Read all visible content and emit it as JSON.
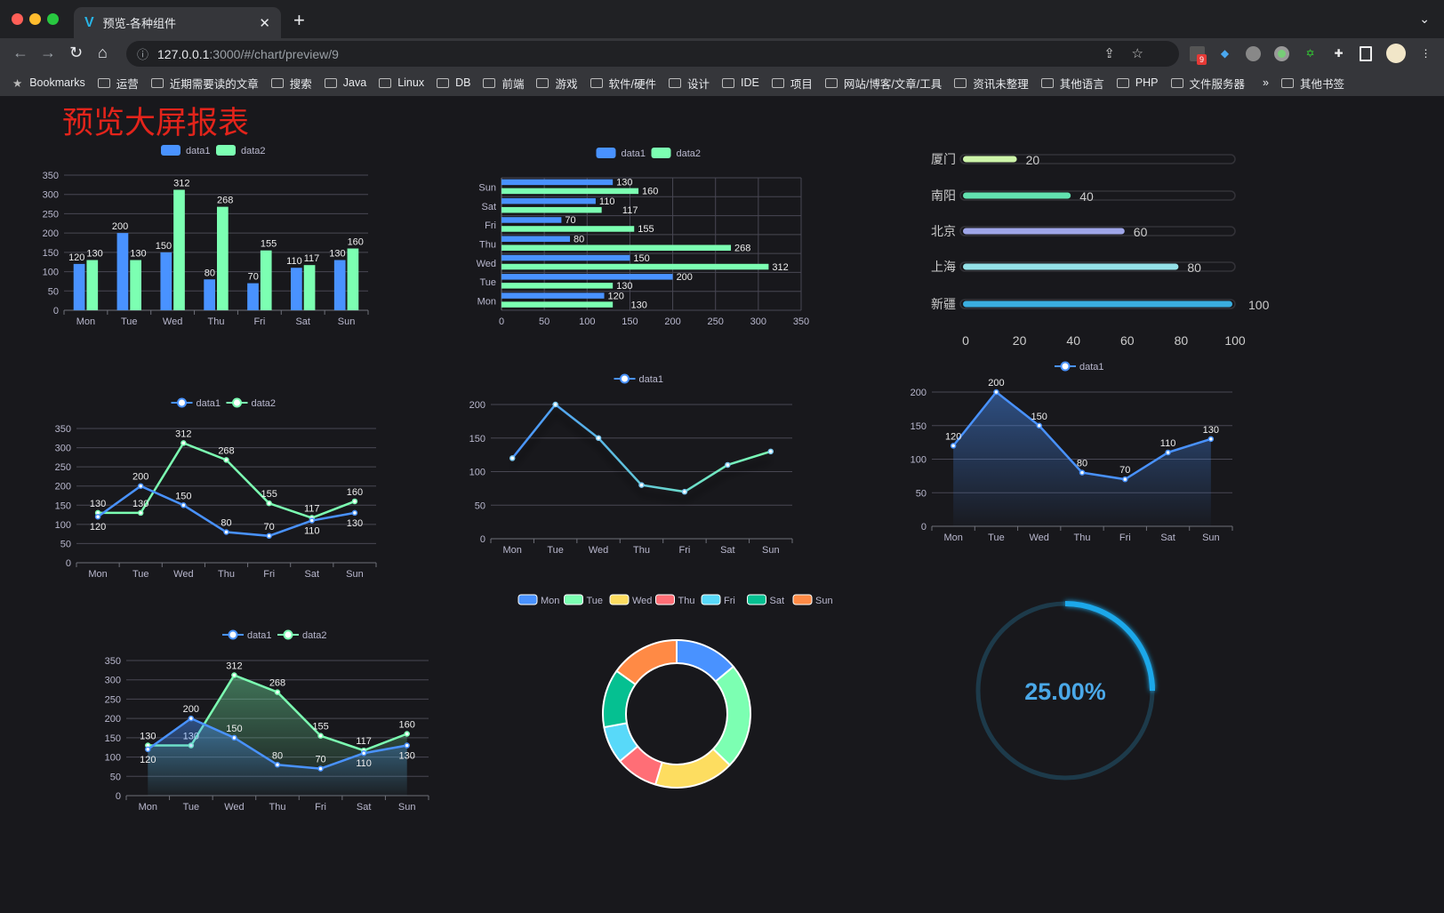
{
  "browser": {
    "tab_title": "预览-各种组件",
    "url_host": "127.0.0.1",
    "url_path": ":3000/#/chart/preview/9",
    "ext_badge": "9",
    "bookmarks": [
      "Bookmarks",
      "运营",
      "近期需要读的文章",
      "搜索",
      "Java",
      "Linux",
      "DB",
      "前端",
      "游戏",
      "软件/硬件",
      "设计",
      "IDE",
      "项目",
      "网站/博客/文章/工具",
      "资讯未整理",
      "其他语言",
      "PHP",
      "文件服务器"
    ],
    "overflow": "»",
    "other_bookmarks": "其他书签"
  },
  "page": {
    "title": "预览大屏报表"
  },
  "colors": {
    "data1": "#4992ff",
    "data2": "#7cffb2",
    "axis_text": "#b9b8ce",
    "grid": "#484753",
    "background": "#18181c"
  },
  "chart_data": [
    {
      "id": "bar",
      "type": "bar",
      "categories": [
        "Mon",
        "Tue",
        "Wed",
        "Thu",
        "Fri",
        "Sat",
        "Sun"
      ],
      "ylim": [
        0,
        350
      ],
      "yticks": [
        0,
        50,
        100,
        150,
        200,
        250,
        300,
        350
      ],
      "legend": "top",
      "series": [
        {
          "name": "data1",
          "values": [
            120,
            200,
            150,
            80,
            70,
            110,
            130
          ]
        },
        {
          "name": "data2",
          "values": [
            130,
            130,
            312,
            268,
            155,
            117,
            160
          ]
        }
      ]
    },
    {
      "id": "hbar",
      "type": "bar",
      "orientation": "horizontal",
      "categories": [
        "Mon",
        "Tue",
        "Wed",
        "Thu",
        "Fri",
        "Sat",
        "Sun"
      ],
      "xlim": [
        0,
        350
      ],
      "xticks": [
        0,
        50,
        100,
        150,
        200,
        250,
        300,
        350
      ],
      "legend": "top",
      "series": [
        {
          "name": "data1",
          "values": [
            120,
            200,
            150,
            80,
            70,
            110,
            130
          ]
        },
        {
          "name": "data2",
          "values": [
            130,
            130,
            312,
            268,
            155,
            117,
            160
          ]
        }
      ]
    },
    {
      "id": "progress",
      "type": "bar",
      "orientation": "horizontal",
      "categories": [
        "厦门",
        "南阳",
        "北京",
        "上海",
        "新疆"
      ],
      "values": [
        20,
        40,
        60,
        80,
        100
      ],
      "xlim": [
        0,
        100
      ],
      "xticks": [
        0,
        20,
        40,
        60,
        80,
        100
      ],
      "colors": [
        "#cdf4a9",
        "#62e2b0",
        "#9fa6e9",
        "#94e1e8",
        "#3aaee0"
      ]
    },
    {
      "id": "line2",
      "type": "line",
      "categories": [
        "Mon",
        "Tue",
        "Wed",
        "Thu",
        "Fri",
        "Sat",
        "Sun"
      ],
      "ylim": [
        0,
        350
      ],
      "yticks": [
        0,
        50,
        100,
        150,
        200,
        250,
        300,
        350
      ],
      "legend": "top",
      "series": [
        {
          "name": "data1",
          "values": [
            120,
            200,
            150,
            80,
            70,
            110,
            130
          ]
        },
        {
          "name": "data2",
          "values": [
            130,
            130,
            312,
            268,
            155,
            117,
            160
          ]
        }
      ]
    },
    {
      "id": "line1",
      "type": "line",
      "categories": [
        "Mon",
        "Tue",
        "Wed",
        "Thu",
        "Fri",
        "Sat",
        "Sun"
      ],
      "ylim": [
        0,
        200
      ],
      "yticks": [
        0,
        50,
        100,
        150,
        200
      ],
      "legend": "top",
      "gradient_line": true,
      "series": [
        {
          "name": "data1",
          "values": [
            120,
            200,
            150,
            80,
            70,
            110,
            130
          ]
        }
      ]
    },
    {
      "id": "area1",
      "type": "area",
      "categories": [
        "Mon",
        "Tue",
        "Wed",
        "Thu",
        "Fri",
        "Sat",
        "Sun"
      ],
      "ylim": [
        0,
        200
      ],
      "yticks": [
        0,
        50,
        100,
        150,
        200
      ],
      "legend": "top",
      "series": [
        {
          "name": "data1",
          "values": [
            120,
            200,
            150,
            80,
            70,
            110,
            130
          ]
        }
      ]
    },
    {
      "id": "area2",
      "type": "area",
      "categories": [
        "Mon",
        "Tue",
        "Wed",
        "Thu",
        "Fri",
        "Sat",
        "Sun"
      ],
      "ylim": [
        0,
        350
      ],
      "yticks": [
        0,
        50,
        100,
        150,
        200,
        250,
        300,
        350
      ],
      "legend": "top",
      "series": [
        {
          "name": "data1",
          "values": [
            120,
            200,
            150,
            80,
            70,
            110,
            130
          ]
        },
        {
          "name": "data2",
          "values": [
            130,
            130,
            312,
            268,
            155,
            117,
            160
          ]
        }
      ]
    },
    {
      "id": "donut",
      "type": "pie",
      "donut": true,
      "legend": "top",
      "categories": [
        "Mon",
        "Tue",
        "Wed",
        "Thu",
        "Fri",
        "Sat",
        "Sun"
      ],
      "values": [
        120,
        200,
        150,
        80,
        70,
        110,
        130
      ],
      "colors": [
        "#4992ff",
        "#7cffb2",
        "#fddd60",
        "#ff6e76",
        "#58d9f9",
        "#05c091",
        "#ff8a45"
      ]
    },
    {
      "id": "gauge",
      "type": "gauge",
      "value": 0.25,
      "label": "25.00%",
      "colors": {
        "track": "#1d3a4a",
        "fill": "#1fa8ea",
        "text": "#4aa8e8"
      }
    }
  ]
}
